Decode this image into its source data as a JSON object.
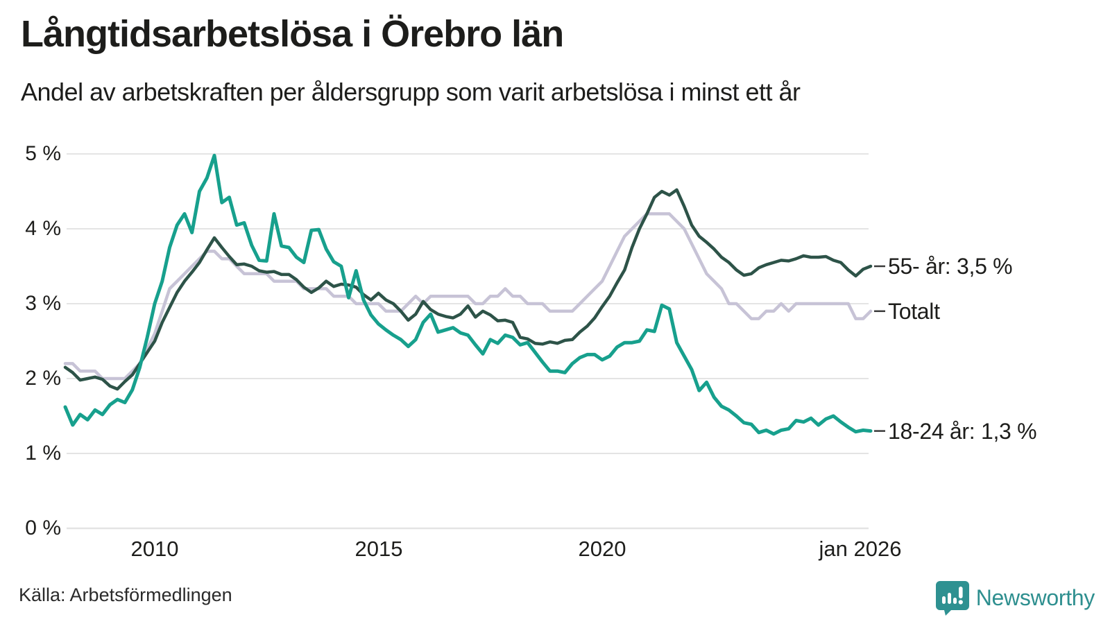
{
  "header": {
    "title": "Långtidsarbetslösa i Örebro län",
    "subtitle": "Andel av arbetskraften per åldersgrupp som varit arbetslösa i minst ett år"
  },
  "footer": {
    "source": "Källa: Arbetsförmedlingen",
    "brand_wordmark": "Newsworthy"
  },
  "decorations": {
    "end_tick_dash_color": "#3a3a3a",
    "grid_color": "#e4e4e4",
    "brand_teal": "#2e9191"
  },
  "chart_data": {
    "type": "line",
    "title": "Långtidsarbetslösa i Örebro län",
    "subtitle": "Andel av arbetskraften per åldersgrupp som varit arbetslösa i minst ett år",
    "xlabel": "",
    "ylabel": "",
    "grid": true,
    "legend_position": "right-end-labels",
    "x_start_year": 2008.0,
    "x_end_year": 2026.0,
    "points_per_year": 6,
    "xlim": [
      2008.0,
      2026.0
    ],
    "ylim": [
      0,
      5
    ],
    "yticks": [
      0,
      1,
      2,
      3,
      4,
      5
    ],
    "yticklabels": [
      "0 %",
      "1 %",
      "2 %",
      "3 %",
      "4 %",
      "5 %"
    ],
    "xticks": [
      {
        "t": 2010,
        "label": "2010"
      },
      {
        "t": 2015,
        "label": "2015"
      },
      {
        "t": 2020,
        "label": "2020"
      },
      {
        "t": 2026,
        "label": "jan 2026"
      }
    ],
    "series": [
      {
        "name": "Totalt",
        "end_label": "Totalt",
        "end_value": 2.9,
        "color": "#c7c3d6",
        "stroke_width": 4.5,
        "values": [
          2.2,
          2.2,
          2.1,
          2.1,
          2.1,
          2.0,
          2.0,
          2.0,
          2.0,
          2.1,
          2.2,
          2.4,
          2.6,
          2.9,
          3.2,
          3.3,
          3.4,
          3.5,
          3.6,
          3.7,
          3.7,
          3.6,
          3.6,
          3.5,
          3.4,
          3.4,
          3.4,
          3.4,
          3.3,
          3.3,
          3.3,
          3.3,
          3.2,
          3.2,
          3.2,
          3.2,
          3.1,
          3.1,
          3.1,
          3.0,
          3.0,
          3.0,
          3.0,
          2.9,
          2.9,
          2.9,
          3.0,
          3.1,
          3.0,
          3.1,
          3.1,
          3.1,
          3.1,
          3.1,
          3.1,
          3.0,
          3.0,
          3.1,
          3.1,
          3.2,
          3.1,
          3.1,
          3.0,
          3.0,
          3.0,
          2.9,
          2.9,
          2.9,
          2.9,
          3.0,
          3.1,
          3.2,
          3.3,
          3.5,
          3.7,
          3.9,
          4.0,
          4.1,
          4.2,
          4.2,
          4.2,
          4.2,
          4.1,
          4.0,
          3.8,
          3.6,
          3.4,
          3.3,
          3.2,
          3.0,
          3.0,
          2.9,
          2.8,
          2.8,
          2.9,
          2.9,
          3.0,
          2.9,
          3.0,
          3.0,
          3.0,
          3.0,
          3.0,
          3.0,
          3.0,
          3.0,
          2.8,
          2.8,
          2.9
        ]
      },
      {
        "name": "55- år",
        "end_label": "55- år: 3,5 %",
        "end_value": 3.5,
        "color": "#2d5348",
        "stroke_width": 4.5,
        "values": [
          2.15,
          2.08,
          1.98,
          2.0,
          2.02,
          1.99,
          1.9,
          1.86,
          1.96,
          2.05,
          2.2,
          2.35,
          2.5,
          2.75,
          2.95,
          3.15,
          3.3,
          3.42,
          3.55,
          3.72,
          3.88,
          3.75,
          3.63,
          3.52,
          3.53,
          3.5,
          3.44,
          3.42,
          3.43,
          3.39,
          3.39,
          3.32,
          3.22,
          3.15,
          3.21,
          3.3,
          3.23,
          3.26,
          3.25,
          3.22,
          3.12,
          3.05,
          3.14,
          3.05,
          3.0,
          2.9,
          2.78,
          2.86,
          3.03,
          2.92,
          2.86,
          2.83,
          2.81,
          2.86,
          2.97,
          2.82,
          2.9,
          2.85,
          2.77,
          2.78,
          2.75,
          2.55,
          2.53,
          2.47,
          2.46,
          2.49,
          2.47,
          2.51,
          2.52,
          2.62,
          2.7,
          2.81,
          2.96,
          3.1,
          3.28,
          3.45,
          3.75,
          4.0,
          4.2,
          4.42,
          4.5,
          4.45,
          4.52,
          4.3,
          4.05,
          3.9,
          3.82,
          3.73,
          3.62,
          3.55,
          3.45,
          3.38,
          3.4,
          3.48,
          3.52,
          3.55,
          3.58,
          3.57,
          3.6,
          3.64,
          3.62,
          3.62,
          3.63,
          3.58,
          3.55,
          3.45,
          3.37,
          3.46,
          3.5
        ]
      },
      {
        "name": "18-24 år",
        "end_label": "18-24 år: 1,3 %",
        "end_value": 1.3,
        "color": "#17a08d",
        "stroke_width": 5,
        "values": [
          1.62,
          1.38,
          1.52,
          1.45,
          1.58,
          1.52,
          1.65,
          1.72,
          1.68,
          1.85,
          2.15,
          2.55,
          3.0,
          3.3,
          3.75,
          4.05,
          4.2,
          3.95,
          4.5,
          4.68,
          4.98,
          4.35,
          4.42,
          4.05,
          4.08,
          3.78,
          3.58,
          3.57,
          4.2,
          3.77,
          3.75,
          3.62,
          3.55,
          3.98,
          3.99,
          3.73,
          3.56,
          3.5,
          3.08,
          3.44,
          3.05,
          2.85,
          2.73,
          2.65,
          2.58,
          2.52,
          2.43,
          2.52,
          2.75,
          2.86,
          2.62,
          2.65,
          2.68,
          2.61,
          2.58,
          2.45,
          2.33,
          2.52,
          2.47,
          2.58,
          2.55,
          2.45,
          2.48,
          2.35,
          2.22,
          2.1,
          2.1,
          2.08,
          2.2,
          2.28,
          2.32,
          2.32,
          2.25,
          2.3,
          2.42,
          2.48,
          2.48,
          2.5,
          2.65,
          2.63,
          2.98,
          2.93,
          2.48,
          2.3,
          2.12,
          1.84,
          1.95,
          1.75,
          1.63,
          1.58,
          1.5,
          1.41,
          1.39,
          1.28,
          1.31,
          1.26,
          1.31,
          1.33,
          1.44,
          1.42,
          1.47,
          1.38,
          1.46,
          1.5,
          1.42,
          1.35,
          1.29,
          1.31,
          1.3
        ]
      }
    ]
  }
}
